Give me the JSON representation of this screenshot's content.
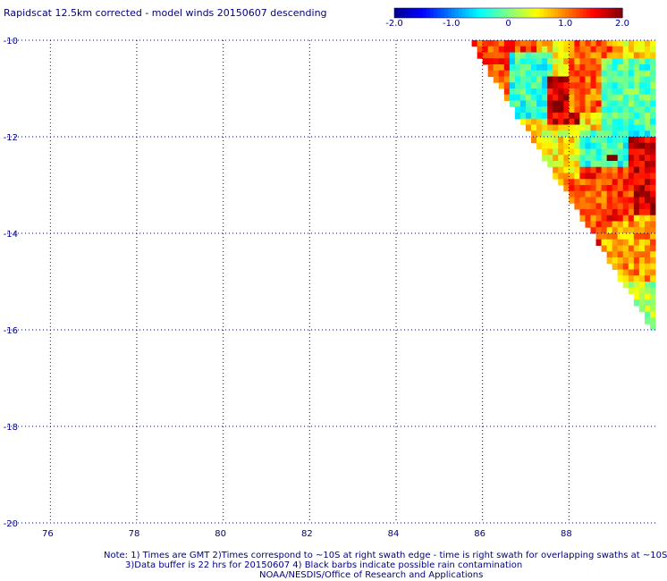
{
  "title": "Rapidscat 12.5km corrected - model winds 20150607 descending",
  "colorbar": {
    "min": -2.0,
    "max": 2.0,
    "labels": [
      "-2.0",
      "-1.0",
      "0",
      "1.0",
      "2.0"
    ],
    "label_values": [
      -2.0,
      -1.0,
      0,
      1.0,
      2.0
    ],
    "colors": [
      "#00008f",
      "#0000ff",
      "#0080ff",
      "#00ffff",
      "#80ff80",
      "#ffff00",
      "#ff8000",
      "#ff0000",
      "#800000"
    ]
  },
  "notes": {
    "line1": "Note: 1) Times are GMT 2)Times correspond to ~10S at right swath edge - time is right swath for overlapping swaths at ~10S",
    "line2": "3)Data buffer is 22 hrs for 20150607 4) Black barbs indicate possible rain contamination",
    "line3": "NOAA/NESDIS/Office of Research and Applications"
  },
  "chart_data": {
    "type": "heatmap",
    "title": "Rapidscat 12.5km corrected - model winds 20150607 descending",
    "x_ticks": [
      76,
      78,
      80,
      82,
      84,
      86,
      88
    ],
    "x_tick_labels": [
      "76",
      "78",
      "80",
      "82",
      "84",
      "86",
      "88"
    ],
    "y_ticks": [
      -10,
      -12,
      -14,
      -16,
      -18,
      -20
    ],
    "y_tick_labels": [
      "-10",
      "-12",
      "-14",
      "-16",
      "-18",
      "-20"
    ],
    "xlim": [
      75,
      90
    ],
    "ylim": [
      -20,
      -10
    ],
    "grid": true,
    "value_range": [
      -2.0,
      2.0
    ],
    "swath": {
      "description_edge_lon_at_top": 85.7,
      "edge_lat_at_right": -16.1,
      "cell_deg": 0.125
    },
    "regions": [
      {
        "lon_min": 85.8,
        "lon_max": 87.2,
        "lat_min": -11.4,
        "lat_max": -10.0,
        "value": 1.2
      },
      {
        "lon_min": 86.6,
        "lon_max": 87.6,
        "lat_min": -11.6,
        "lat_max": -10.3,
        "value": -0.3
      },
      {
        "lon_min": 87.5,
        "lon_max": 88.2,
        "lat_min": -11.8,
        "lat_max": -10.8,
        "value": 1.7
      },
      {
        "lon_min": 88.0,
        "lon_max": 89.0,
        "lat_min": -11.5,
        "lat_max": -10.0,
        "value": 1.1
      },
      {
        "lon_min": 88.8,
        "lon_max": 90.0,
        "lat_min": -12.0,
        "lat_max": -10.4,
        "value": -0.2
      },
      {
        "lon_min": 87.2,
        "lon_max": 88.3,
        "lat_min": -12.6,
        "lat_max": -11.8,
        "value": 0.5
      },
      {
        "lon_min": 88.2,
        "lon_max": 90.0,
        "lat_min": -12.6,
        "lat_max": -11.9,
        "value": -0.3
      },
      {
        "lon_min": 89.4,
        "lon_max": 90.0,
        "lat_min": -13.6,
        "lat_max": -12.0,
        "value": 1.7
      },
      {
        "lon_min": 88.3,
        "lon_max": 89.5,
        "lat_min": -14.4,
        "lat_max": -12.6,
        "value": 1.3
      },
      {
        "lon_min": 87.9,
        "lon_max": 88.9,
        "lat_min": -14.0,
        "lat_max": -12.9,
        "value": 1.2
      },
      {
        "lon_min": 88.8,
        "lon_max": 90.0,
        "lat_min": -15.2,
        "lat_max": -13.8,
        "value": 0.9
      },
      {
        "lon_min": 89.0,
        "lon_max": 90.0,
        "lat_min": -16.2,
        "lat_max": -15.0,
        "value": 0.2
      },
      {
        "lon_min": 88.9,
        "lon_max": 89.1,
        "lat_min": -12.55,
        "lat_max": -12.4,
        "value": 2.0
      }
    ]
  }
}
